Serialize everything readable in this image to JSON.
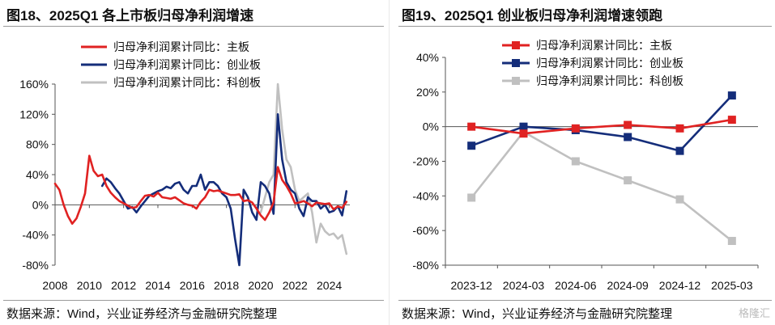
{
  "footnote": "数据来源：Wind，兴业证券经济与金融研究院整理",
  "watermark": "格隆汇",
  "chart_data": [
    {
      "type": "line",
      "title": "图18、2025Q1 各上市板归母净利润增速",
      "ylim": [
        -80,
        160
      ],
      "yticks": [
        -80,
        -40,
        0,
        40,
        80,
        120,
        160
      ],
      "ytick_labels": [
        "-80%",
        "-40%",
        "0%",
        "40%",
        "80%",
        "120%",
        "160%"
      ],
      "xlim": [
        2008,
        2025.2
      ],
      "xticks": [
        2008,
        2010,
        2012,
        2014,
        2016,
        2018,
        2020,
        2022,
        2024
      ],
      "xtick_labels": [
        "2008",
        "2010",
        "2012",
        "2014",
        "2016",
        "2018",
        "2020",
        "2022",
        "2024"
      ],
      "legend": "top-left",
      "series": [
        {
          "name": "归母净利润累计同比：主板",
          "color": "#e02222",
          "x": [
            2008.0,
            2008.25,
            2008.5,
            2008.75,
            2009.0,
            2009.25,
            2009.5,
            2009.75,
            2010.0,
            2010.25,
            2010.5,
            2010.75,
            2011.0,
            2011.25,
            2011.5,
            2011.75,
            2012.0,
            2012.25,
            2012.5,
            2012.75,
            2013.0,
            2013.25,
            2013.5,
            2013.75,
            2014.0,
            2014.25,
            2014.5,
            2014.75,
            2015.0,
            2015.25,
            2015.5,
            2015.75,
            2016.0,
            2016.25,
            2016.5,
            2016.75,
            2017.0,
            2017.25,
            2017.5,
            2017.75,
            2018.0,
            2018.25,
            2018.5,
            2018.75,
            2019.0,
            2019.25,
            2019.5,
            2019.75,
            2020.0,
            2020.25,
            2020.5,
            2020.75,
            2021.0,
            2021.25,
            2021.5,
            2021.75,
            2022.0,
            2022.25,
            2022.5,
            2022.75,
            2023.0,
            2023.25,
            2023.5,
            2023.75,
            2024.0,
            2024.25,
            2024.5,
            2024.75,
            2025.0
          ],
          "y": [
            28,
            20,
            0,
            -15,
            -25,
            -18,
            -3,
            15,
            65,
            45,
            38,
            40,
            25,
            16,
            10,
            5,
            2,
            -1,
            -4,
            -3,
            5,
            12,
            13,
            11,
            16,
            10,
            9,
            8,
            10,
            6,
            2,
            0,
            -1,
            -5,
            4,
            10,
            20,
            18,
            19,
            17,
            15,
            13,
            13,
            14,
            5,
            6,
            3,
            -5,
            -14,
            -20,
            -10,
            3,
            50,
            33,
            25,
            15,
            2,
            3,
            5,
            2,
            -2,
            3,
            2,
            1,
            2,
            -6,
            -2,
            -4,
            4
          ]
        },
        {
          "name": "归母净利润累计同比：创业板",
          "color": "#142d7a",
          "x": [
            2010.75,
            2011.0,
            2011.25,
            2011.5,
            2011.75,
            2012.0,
            2012.25,
            2012.5,
            2012.75,
            2013.0,
            2013.25,
            2013.5,
            2013.75,
            2014.0,
            2014.25,
            2014.5,
            2014.75,
            2015.0,
            2015.25,
            2015.5,
            2015.75,
            2016.0,
            2016.25,
            2016.5,
            2016.75,
            2017.0,
            2017.25,
            2017.5,
            2017.75,
            2018.0,
            2018.25,
            2018.5,
            2018.75,
            2019.0,
            2019.25,
            2019.5,
            2019.75,
            2020.0,
            2020.25,
            2020.5,
            2020.75,
            2021.0,
            2021.25,
            2021.5,
            2021.75,
            2022.0,
            2022.25,
            2022.5,
            2022.75,
            2023.0,
            2023.25,
            2023.5,
            2023.75,
            2024.0,
            2024.25,
            2024.5,
            2024.75,
            2025.0
          ],
          "y": [
            25,
            35,
            30,
            22,
            15,
            5,
            -5,
            -3,
            -10,
            -2,
            5,
            12,
            15,
            18,
            20,
            24,
            22,
            28,
            30,
            20,
            15,
            25,
            25,
            40,
            20,
            30,
            30,
            25,
            15,
            10,
            -5,
            -45,
            -80,
            20,
            10,
            -10,
            -20,
            30,
            25,
            15,
            -12,
            120,
            60,
            30,
            20,
            15,
            -5,
            -15,
            10,
            5,
            5,
            -5,
            0,
            -10,
            -8,
            -2,
            -14,
            18
          ]
        },
        {
          "name": "归母净利润累计同比：科创板",
          "color": "#c0c0c0",
          "x": [
            2020.0,
            2020.25,
            2020.5,
            2020.75,
            2021.0,
            2021.25,
            2021.5,
            2021.75,
            2022.0,
            2022.25,
            2022.5,
            2022.75,
            2023.0,
            2023.25,
            2023.5,
            2023.75,
            2024.0,
            2024.25,
            2024.5,
            2024.75,
            2025.0
          ],
          "y": [
            -10,
            10,
            30,
            40,
            160,
            100,
            60,
            50,
            20,
            5,
            10,
            15,
            -10,
            -50,
            -25,
            -35,
            -40,
            -38,
            -45,
            -40,
            -65
          ]
        }
      ]
    },
    {
      "type": "line",
      "title": "图19、2025Q1 创业板归母净利润增速领跑",
      "ylim": [
        -80,
        40
      ],
      "yticks": [
        -80,
        -60,
        -40,
        -20,
        0,
        20,
        40
      ],
      "ytick_labels": [
        "-80%",
        "-60%",
        "-40%",
        "-20%",
        "0%",
        "20%",
        "40%"
      ],
      "categories": [
        "2023-12",
        "2024-03",
        "2024-06",
        "2024-09",
        "2024-12",
        "2025-03"
      ],
      "legend": "top-left",
      "series": [
        {
          "name": "归母净利润累计同比：主板",
          "color": "#e02222",
          "values": [
            0,
            -4,
            -1,
            1,
            -1,
            4
          ]
        },
        {
          "name": "归母净利润累计同比：创业板",
          "color": "#142d7a",
          "values": [
            -11,
            0,
            -2,
            -6,
            -14,
            18
          ]
        },
        {
          "name": "归母净利润累计同比：科创板",
          "color": "#c0c0c0",
          "values": [
            -41,
            -3,
            -20,
            -31,
            -42,
            -66
          ]
        }
      ]
    }
  ]
}
